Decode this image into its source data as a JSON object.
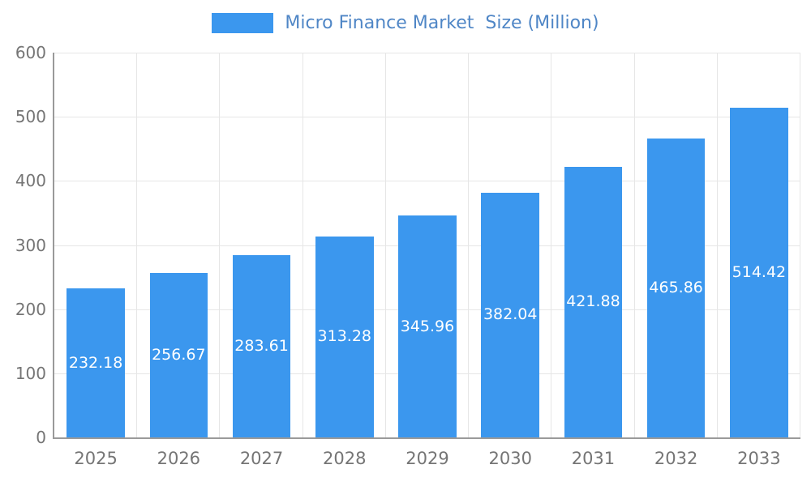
{
  "chart_data": {
    "type": "bar",
    "title": "Micro Finance Market  Size (Million)",
    "categories": [
      "2025",
      "2026",
      "2027",
      "2028",
      "2029",
      "2030",
      "2031",
      "2032",
      "2033"
    ],
    "values": [
      232.18,
      256.67,
      283.61,
      313.28,
      345.96,
      382.04,
      421.88,
      465.86,
      514.42
    ],
    "xlabel": "",
    "ylabel": "",
    "ylim": [
      0,
      600
    ],
    "ytick_step": 100,
    "grid": true,
    "legend_position": "top-center",
    "colors": {
      "bar": "#3b97ee",
      "value_label": "#ffffff",
      "legend_text": "#4f86c6",
      "tick_text": "#757575",
      "gridline": "#e6e6e6",
      "axis": "#9a9a9a",
      "background": "#ffffff"
    }
  }
}
